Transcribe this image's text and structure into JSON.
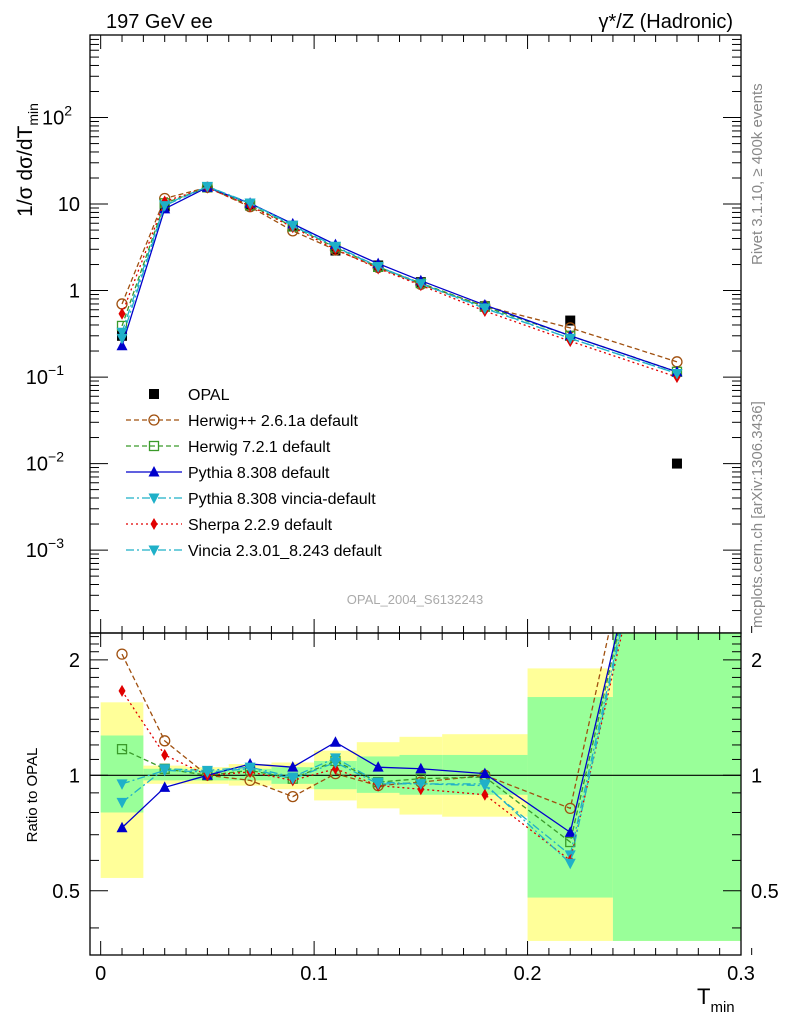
{
  "header": {
    "left_title": "197 GeV ee",
    "right_title": "γ*/Z (Hadronic)"
  },
  "side": {
    "rivet": "Rivet 3.1.10, ≥ 400k events",
    "mcplots": "mcplots.cern.ch [arXiv:1306.3436]"
  },
  "watermark": "OPAL_2004_S6132243",
  "colors": {
    "data": "#000000",
    "herwigpp": "#a0500f",
    "herwig7": "#3a9a2a",
    "pythia": "#0000cc",
    "pythia_vincia": "#1fb0c8",
    "sherpa": "#e00000",
    "vincia": "#1fb0c8",
    "band_yellow": "#ffff99",
    "band_green": "#99ff99"
  },
  "chart_data": [
    {
      "type": "line",
      "ylog": true,
      "xlim": [
        -0.005,
        0.3
      ],
      "ylim": [
        0.00011,
        900
      ],
      "ylabel": "1/σ dσ/dT",
      "ylabel_sub": "min",
      "yticks": [
        {
          "value": 0.001,
          "base": "10",
          "exp": "−3"
        },
        {
          "value": 0.01,
          "base": "10",
          "exp": "−2"
        },
        {
          "value": 0.1,
          "base": "10",
          "exp": "−1"
        },
        {
          "value": 1,
          "base": "1",
          "exp": ""
        },
        {
          "value": 10,
          "base": "10",
          "exp": ""
        },
        {
          "value": 100,
          "base": "10",
          "exp": "2"
        }
      ],
      "legend_position": "left-center",
      "series": [
        {
          "key": "opal",
          "name": "OPAL",
          "marker": "square-filled",
          "dash": "none",
          "x": [
            0.01,
            0.03,
            0.05,
            0.07,
            0.09,
            0.11,
            0.13,
            0.15,
            0.18,
            0.22,
            0.27
          ],
          "y": [
            0.3,
            9.4,
            15.6,
            9.6,
            5.6,
            2.9,
            1.95,
            1.25,
            0.66,
            0.45,
            0.01
          ]
        },
        {
          "key": "herwigpp",
          "name": "Herwig++ 2.6.1a default",
          "marker": "circle-open",
          "dash": "5,3",
          "x": [
            0.01,
            0.03,
            0.05,
            0.07,
            0.09,
            0.11,
            0.13,
            0.15,
            0.18,
            0.22,
            0.27
          ],
          "y": [
            0.7,
            11.6,
            15.6,
            9.3,
            4.9,
            2.95,
            1.85,
            1.18,
            0.66,
            0.37,
            0.15
          ]
        },
        {
          "key": "herwig7",
          "name": "Herwig 7.2.1 default",
          "marker": "square-open",
          "dash": "5,3",
          "x": [
            0.01,
            0.03,
            0.05,
            0.07,
            0.09,
            0.11,
            0.13,
            0.15,
            0.18,
            0.22,
            0.27
          ],
          "y": [
            0.39,
            10.2,
            15.6,
            9.7,
            5.5,
            3.15,
            1.88,
            1.22,
            0.65,
            0.3,
            0.115
          ]
        },
        {
          "key": "pythia",
          "name": "Pythia 8.308 default",
          "marker": "triangle-up-filled",
          "dash": "none",
          "x": [
            0.01,
            0.03,
            0.05,
            0.07,
            0.09,
            0.11,
            0.13,
            0.15,
            0.18,
            0.22,
            0.27
          ],
          "y": [
            0.23,
            8.8,
            15.6,
            10.2,
            5.9,
            3.4,
            2.05,
            1.3,
            0.68,
            0.3,
            0.115
          ]
        },
        {
          "key": "pythia_vincia",
          "name": "Pythia 8.308 vincia-default",
          "marker": "triangle-down-filled",
          "dash": "8,3,2,3",
          "x": [
            0.01,
            0.03,
            0.05,
            0.07,
            0.09,
            0.11,
            0.13,
            0.15,
            0.18,
            0.22,
            0.27
          ],
          "y": [
            0.33,
            9.8,
            16.0,
            10.3,
            5.7,
            3.25,
            1.9,
            1.2,
            0.63,
            0.28,
            0.11
          ]
        },
        {
          "key": "sherpa",
          "name": "Sherpa 2.2.9 default",
          "marker": "diamond-filled",
          "dash": "2,3",
          "x": [
            0.01,
            0.03,
            0.05,
            0.07,
            0.09,
            0.11,
            0.13,
            0.15,
            0.18,
            0.22,
            0.27
          ],
          "y": [
            0.54,
            10.7,
            15.5,
            9.5,
            5.4,
            3.0,
            1.8,
            1.15,
            0.58,
            0.26,
            0.1
          ]
        },
        {
          "key": "vincia",
          "name": "Vincia 2.3.01_8.243 default",
          "marker": "triangle-down-filled",
          "dash": "8,3,2,3",
          "x": [
            0.01,
            0.03,
            0.05,
            0.07,
            0.09,
            0.11,
            0.13,
            0.15,
            0.18,
            0.22,
            0.27
          ],
          "y": [
            0.28,
            9.6,
            15.9,
            10.2,
            5.6,
            3.2,
            1.88,
            1.2,
            0.62,
            0.28,
            0.11
          ]
        }
      ]
    },
    {
      "type": "line",
      "ylog": true,
      "xlim": [
        -0.005,
        0.3
      ],
      "ylim": [
        0.34,
        2.35
      ],
      "ylabel": "Ratio to OPAL",
      "xlabel": "T",
      "xlabel_sub": "min",
      "reference_line": 1,
      "yticks": [
        {
          "value": 0.5,
          "label": "0.5"
        },
        {
          "value": 1,
          "label": "1"
        },
        {
          "value": 2,
          "label": "2"
        }
      ],
      "xticks": [
        {
          "value": 0,
          "label": "0"
        },
        {
          "value": 0.1,
          "label": "0.1"
        },
        {
          "value": 0.2,
          "label": "0.2"
        },
        {
          "value": 0.3,
          "label": "0.3"
        }
      ],
      "bands": [
        {
          "x0": 0.0,
          "x1": 0.02,
          "y_lo": 0.54,
          "y_hi": 1.55,
          "g_lo": 0.8,
          "g_hi": 1.27
        },
        {
          "x0": 0.02,
          "x1": 0.04,
          "y_lo": 0.95,
          "y_hi": 1.06,
          "g_lo": 0.97,
          "g_hi": 1.04
        },
        {
          "x0": 0.04,
          "x1": 0.06,
          "y_lo": 0.95,
          "y_hi": 1.05,
          "g_lo": 0.97,
          "g_hi": 1.03
        },
        {
          "x0": 0.06,
          "x1": 0.08,
          "y_lo": 0.94,
          "y_hi": 1.07,
          "g_lo": 0.97,
          "g_hi": 1.04
        },
        {
          "x0": 0.08,
          "x1": 0.1,
          "y_lo": 0.92,
          "y_hi": 1.08,
          "g_lo": 0.95,
          "g_hi": 1.05
        },
        {
          "x0": 0.1,
          "x1": 0.12,
          "y_lo": 0.86,
          "y_hi": 1.16,
          "g_lo": 0.92,
          "g_hi": 1.09
        },
        {
          "x0": 0.12,
          "x1": 0.14,
          "y_lo": 0.82,
          "y_hi": 1.22,
          "g_lo": 0.9,
          "g_hi": 1.12
        },
        {
          "x0": 0.14,
          "x1": 0.16,
          "y_lo": 0.79,
          "y_hi": 1.26,
          "g_lo": 0.89,
          "g_hi": 1.13
        },
        {
          "x0": 0.16,
          "x1": 0.2,
          "y_lo": 0.78,
          "y_hi": 1.28,
          "g_lo": 0.89,
          "g_hi": 1.13
        },
        {
          "x0": 0.2,
          "x1": 0.24,
          "y_lo": 0.37,
          "y_hi": 1.9,
          "g_lo": 0.48,
          "g_hi": 1.6
        },
        {
          "x0": 0.24,
          "x1": 0.3,
          "y_lo": 0.37,
          "y_hi": 2.35,
          "g_lo": 0.37,
          "g_hi": 2.35
        }
      ],
      "series": [
        {
          "key": "herwigpp",
          "x": [
            0.01,
            0.03,
            0.05,
            0.07,
            0.09,
            0.11,
            0.13,
            0.15,
            0.18,
            0.22,
            0.27
          ],
          "y": [
            2.07,
            1.23,
            1.0,
            0.97,
            0.88,
            1.01,
            0.94,
            0.96,
            1.0,
            0.82,
            15
          ]
        },
        {
          "key": "herwig7",
          "x": [
            0.01,
            0.03,
            0.05,
            0.07,
            0.09,
            0.11,
            0.13,
            0.15,
            0.18,
            0.22,
            0.27
          ],
          "y": [
            1.17,
            1.04,
            1.0,
            1.03,
            0.98,
            1.09,
            0.96,
            0.98,
            0.99,
            0.67,
            11
          ]
        },
        {
          "key": "pythia",
          "x": [
            0.01,
            0.03,
            0.05,
            0.07,
            0.09,
            0.11,
            0.13,
            0.15,
            0.18,
            0.22,
            0.27
          ],
          "y": [
            0.73,
            0.93,
            1.0,
            1.07,
            1.05,
            1.22,
            1.05,
            1.04,
            1.01,
            0.71,
            11
          ]
        },
        {
          "key": "pythia_vincia",
          "x": [
            0.01,
            0.03,
            0.05,
            0.07,
            0.09,
            0.11,
            0.13,
            0.15,
            0.18,
            0.22,
            0.27
          ],
          "y": [
            0.85,
            1.04,
            1.03,
            1.05,
            0.99,
            1.11,
            0.96,
            0.95,
            0.94,
            0.62,
            11
          ]
        },
        {
          "key": "sherpa",
          "x": [
            0.01,
            0.03,
            0.05,
            0.07,
            0.09,
            0.11,
            0.13,
            0.15,
            0.18,
            0.22,
            0.27
          ],
          "y": [
            1.66,
            1.13,
            1.0,
            1.02,
            0.97,
            1.04,
            0.94,
            0.92,
            0.89,
            0.6,
            10
          ]
        },
        {
          "key": "vincia",
          "x": [
            0.01,
            0.03,
            0.05,
            0.07,
            0.09,
            0.11,
            0.13,
            0.15,
            0.18,
            0.22,
            0.27
          ],
          "y": [
            0.95,
            1.03,
            1.02,
            1.04,
            0.98,
            1.08,
            0.95,
            0.95,
            0.95,
            0.59,
            11
          ]
        }
      ]
    }
  ]
}
